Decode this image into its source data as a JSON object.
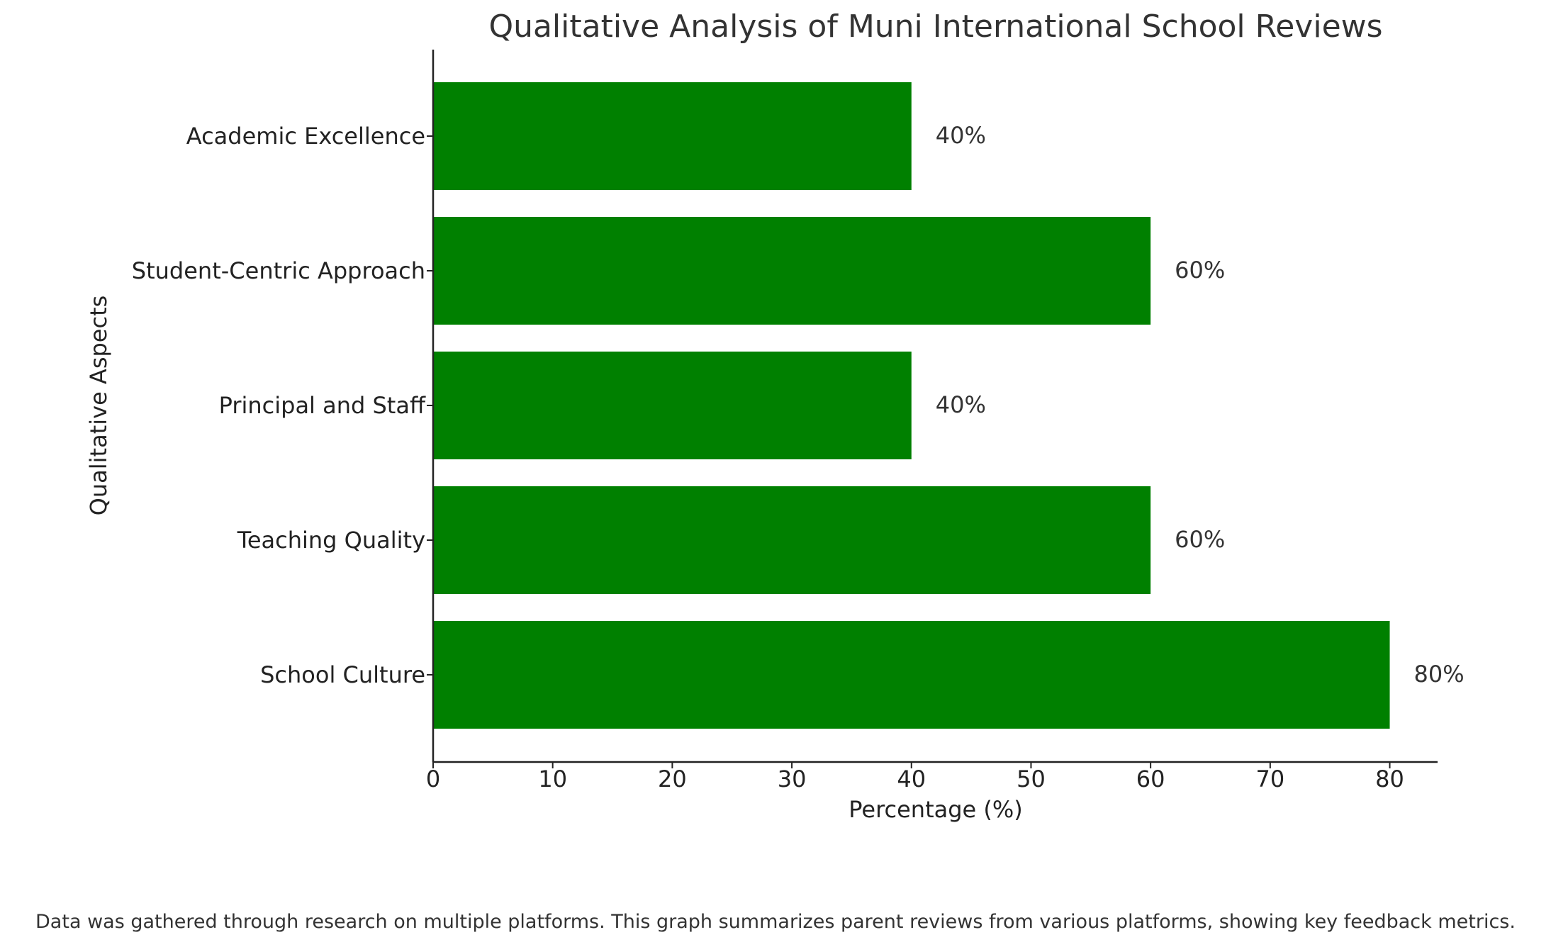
{
  "chart_data": {
    "type": "bar",
    "orientation": "horizontal",
    "title": "Qualitative Analysis of Muni International School Reviews",
    "xlabel": "Percentage (%)",
    "ylabel": "Qualitative Aspects",
    "categories": [
      "School Culture",
      "Teaching Quality",
      "Principal and Staff",
      "Student-Centric Approach",
      "Academic Excellence"
    ],
    "values": [
      80,
      60,
      40,
      60,
      40
    ],
    "value_labels": [
      "80%",
      "60%",
      "40%",
      "60%",
      "40%"
    ],
    "xticks": [
      "0",
      "10",
      "20",
      "30",
      "40",
      "50",
      "60",
      "70",
      "80"
    ],
    "xlim": [
      0,
      84
    ],
    "grid": false,
    "bar_color": "#008000"
  },
  "caption": "Data was gathered through research on multiple platforms. This graph summarizes parent reviews from various platforms, showing key feedback metrics."
}
